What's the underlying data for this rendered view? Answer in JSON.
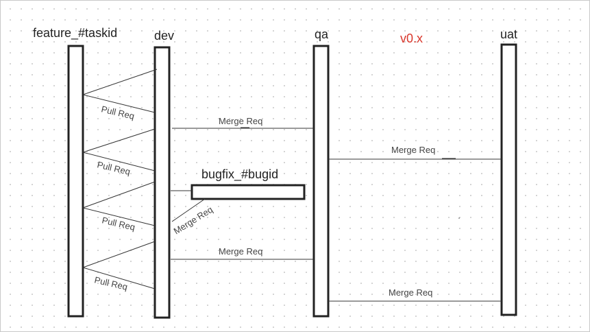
{
  "lanes": {
    "feature": "feature_#taskid",
    "dev": "dev",
    "qa": "qa",
    "uat": "uat"
  },
  "version_label": "v0.x",
  "branch_label": "bugfix_#bugid",
  "labels": {
    "pull_req": "Pull Req",
    "merge_req": "Merge Req"
  },
  "colors": {
    "bars": "#222222",
    "lines": "#333333",
    "version": "#d9362b"
  }
}
